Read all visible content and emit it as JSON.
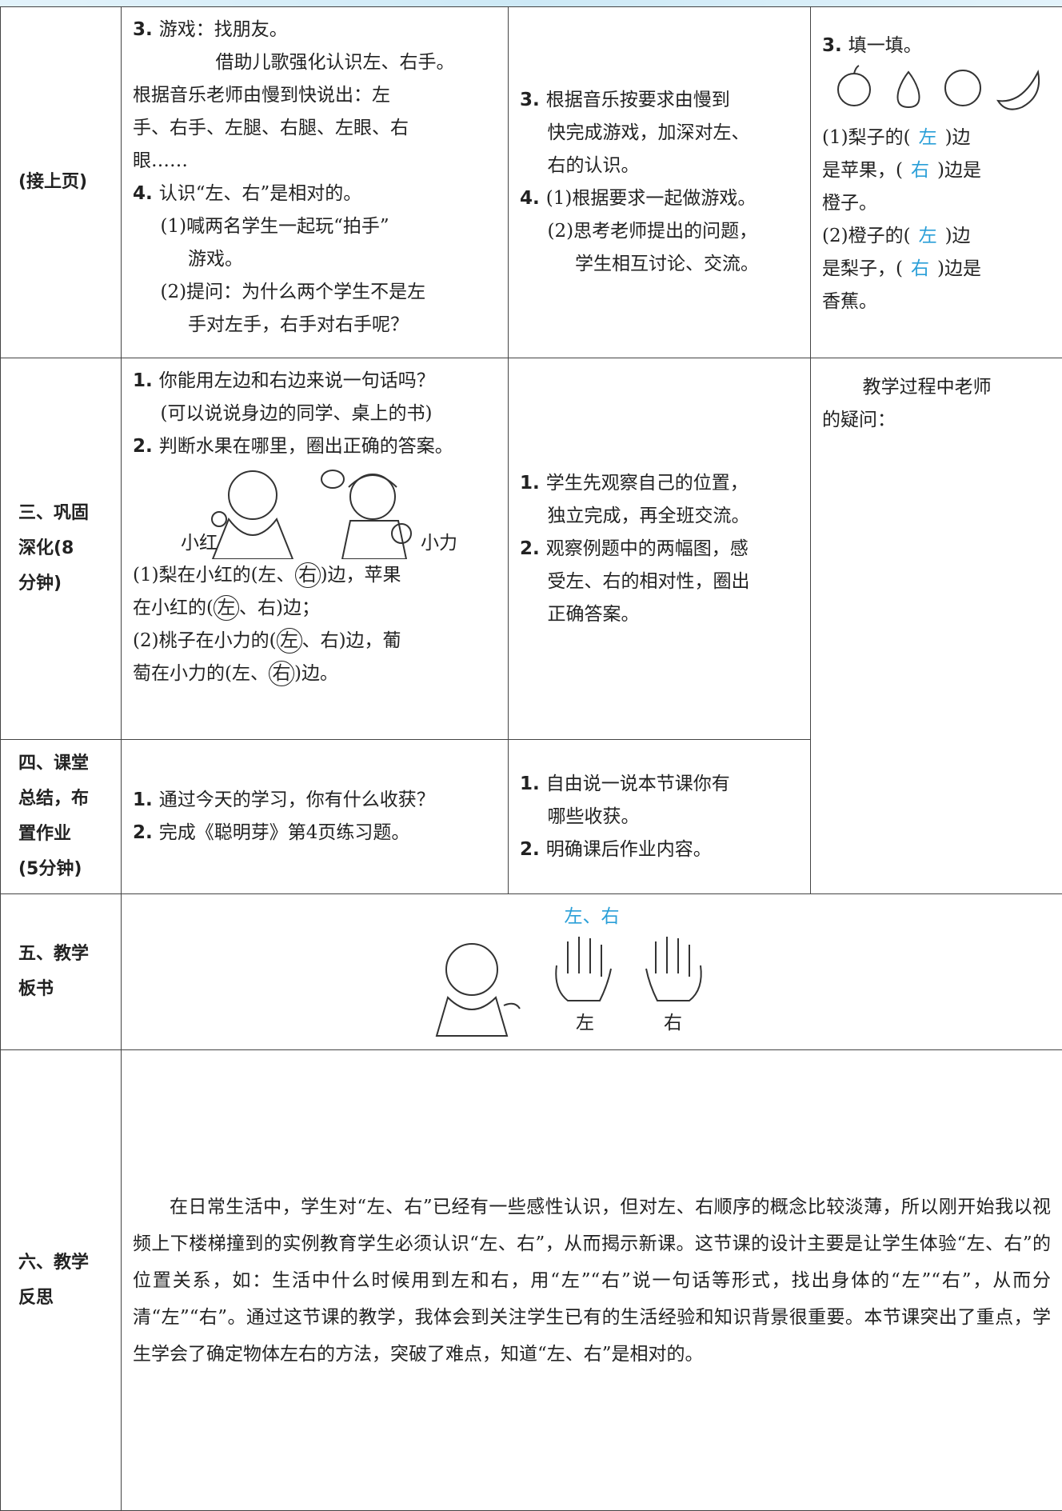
{
  "rows": [
    {
      "label": [
        "(接上页)"
      ],
      "teacher": [
        [
          {
            "b": "3."
          },
          "游戏：找朋友。"
        ],
        [
          "借助儿歌强化认识左、右手。"
        ],
        [
          "根据音乐老师由慢到快说出：左"
        ],
        [
          "手、右手、左腿、右腿、左眼、右"
        ],
        [
          "眼……"
        ],
        [
          {
            "b": "4."
          },
          "认识“左、右”是相对的。"
        ],
        [
          "(1)喊两名学生一起玩“拍手”"
        ],
        [
          "游戏。"
        ],
        [
          "(2)提问：为什么两个学生不是左"
        ],
        [
          "手对左手，右手对右手呢？"
        ]
      ],
      "student": [
        [
          {
            "b": "3."
          },
          "根据音乐按要求由慢到"
        ],
        [
          "快完成游戏，加深对左、"
        ],
        [
          "右的认识。"
        ],
        [
          {
            "b": "4."
          },
          "(1)根据要求一起做游戏。"
        ],
        [
          "(2)思考老师提出的问题，"
        ],
        [
          "学生相互讨论、交流。"
        ]
      ],
      "notes_heading": [
        [
          {
            "b": "3."
          },
          "填一填。"
        ]
      ],
      "notes": [
        [
          "(1)梨子的(",
          {
            "blue": "左"
          },
          ")边"
        ],
        [
          "是苹果，(",
          {
            "blue": "右"
          },
          ")边是"
        ],
        [
          "橙子。"
        ],
        [
          "(2)橙子的(",
          {
            "blue": "左"
          },
          ")边"
        ],
        [
          "是梨子，(",
          {
            "blue": "右"
          },
          ")边是"
        ],
        [
          "香蕉。"
        ]
      ]
    },
    {
      "label": [
        "三、巩固",
        "深化(8",
        "分钟)"
      ],
      "teacher_intro": [
        [
          {
            "b": "1."
          },
          "你能用左边和右边来说一句话吗？"
        ],
        [
          "(可以说说身边的同学、桌上的书)"
        ],
        [
          {
            "b": "2."
          },
          "判断水果在哪里，圈出正确的答案。"
        ]
      ],
      "captions": [
        "小红",
        "小力"
      ],
      "teacher": [
        [
          "(1)梨在小红的(左、",
          {
            "c": "右"
          },
          ")边，苹果"
        ],
        [
          "在小红的(",
          {
            "c": "左"
          },
          "、右)边；"
        ],
        [
          "(2)桃子在小力的(",
          {
            "c": "左"
          },
          "、右)边，葡"
        ],
        [
          "萄在小力的(左、",
          {
            "c": "右"
          },
          ")边。"
        ]
      ],
      "student": [
        [
          {
            "b": "1."
          },
          "学生先观察自己的位置，"
        ],
        [
          "独立完成，再全班交流。"
        ],
        [
          {
            "b": "2."
          },
          "观察例题中的两幅图，感"
        ],
        [
          "受左、右的相对性，圈出"
        ],
        [
          "正确答案。"
        ]
      ],
      "notes": [
        [
          "教学过程中老师"
        ],
        [
          "的疑问："
        ]
      ]
    },
    {
      "label": [
        "四、课堂",
        "总结，布",
        "置作业",
        "(5分钟)"
      ],
      "teacher": [
        [
          {
            "b": "1."
          },
          "通过今天的学习，你有什么收获？"
        ],
        [
          {
            "b": "2."
          },
          "完成《聪明芽》第4页练习题。"
        ]
      ],
      "student": [
        [
          {
            "b": "1."
          },
          "自由说一说本节课你有"
        ],
        [
          "哪些收获。"
        ],
        [
          {
            "b": "2."
          },
          "明确课后作业内容。"
        ]
      ]
    },
    {
      "label": [
        "五、教学",
        "板书"
      ],
      "board_title": "左、右",
      "board_captions": [
        "左",
        "右"
      ]
    },
    {
      "label": [
        "六、教学",
        "反思"
      ],
      "text": "在日常生活中，学生对“左、右”已经有一些感性认识，但对左、右顺序的概念比较淡薄，所以刚开始我以视频上下楼梯撞到的实例教育学生必须认识“左、右”，从而揭示新课。这节课的设计主要是让学生体验“左、右”的位置关系，如：生活中什么时候用到左和右，用“左”“右”说一句话等形式，找出身体的“左”“右”，从而分清“左”“右”。通过这节课的教学，我体会到关注学生已有的生活经验和知识背景很重要。本节课突出了重点，学生学会了确定物体左右的方法，突破了难点，知道“左、右”是相对的。"
    }
  ]
}
